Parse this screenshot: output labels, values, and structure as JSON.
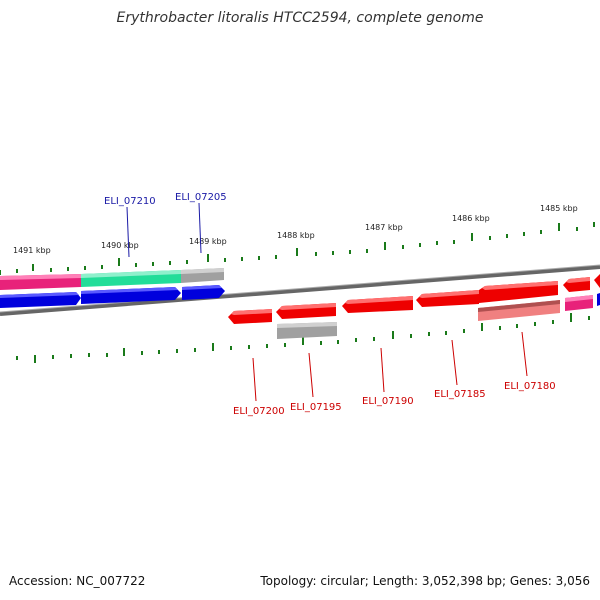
{
  "title": "Erythrobacter litoralis HTCC2594, complete genome",
  "accession": "Accession: NC_007722",
  "stats": "Topology: circular; Length: 3,052,398 bp; Genes: 3,056",
  "ticks": [
    "1491 kbp",
    "1490 kbp",
    "1489 kbp",
    "1488 kbp",
    "1487 kbp",
    "1486 kbp",
    "1485 kbp"
  ],
  "genes_forward": [
    "ELI_07210",
    "ELI_07205"
  ],
  "genes_reverse": [
    "ELI_07200",
    "ELI_07195",
    "ELI_07190",
    "ELI_07185",
    "ELI_07180"
  ],
  "colors": {
    "forward_cds": "#0000dd",
    "reverse_cds": "#ee0000",
    "rna_gray": "#a0a0a0",
    "magenta": "#e8227a",
    "teal": "#22dd99",
    "salmon": "#f08080",
    "tick_green": "#1a7a1a",
    "backbone": "#666666"
  }
}
